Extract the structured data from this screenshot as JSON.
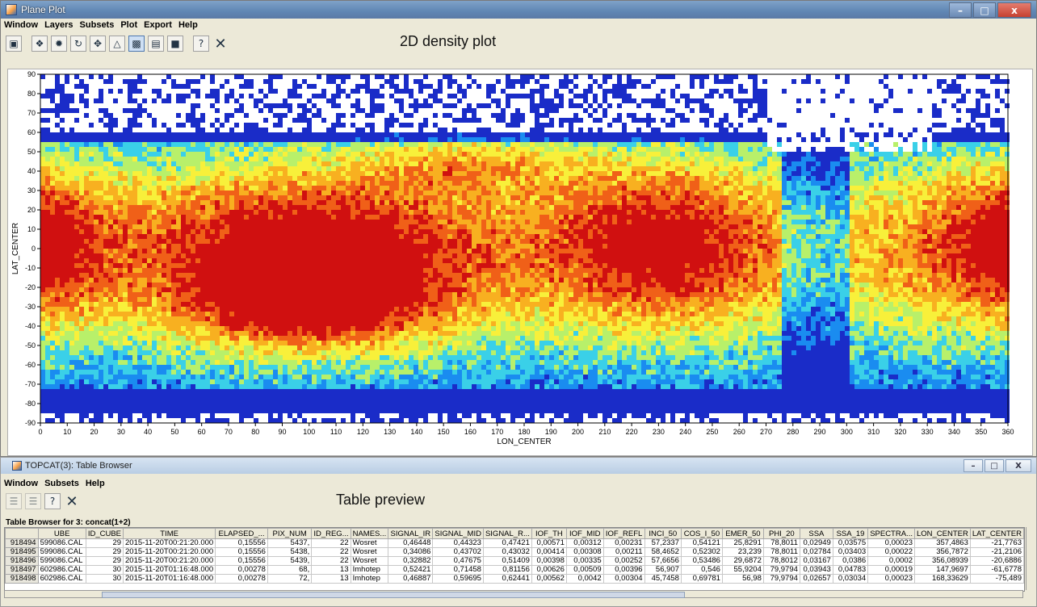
{
  "plot_window": {
    "title": "Plane Plot",
    "menus": [
      "Window",
      "Layers",
      "Subsets",
      "Plot",
      "Export",
      "Help"
    ],
    "annotation": "2D density plot",
    "toolbar_icons": [
      "new-window-icon",
      "subset-icon",
      "clear-icon",
      "rescale-icon",
      "navigate-icon",
      "grid-icon",
      "density-icon",
      "legend-icon",
      "draw-icon",
      "help-icon",
      "close-icon"
    ]
  },
  "chart_data": {
    "type": "heatmap",
    "xlabel": "LON_CENTER",
    "ylabel": "LAT_CENTER",
    "xlim": [
      0,
      360
    ],
    "ylim": [
      -90,
      90
    ],
    "x_ticks": [
      "0",
      "10",
      "20",
      "30",
      "40",
      "50",
      "60",
      "70",
      "80",
      "90",
      "100",
      "110",
      "120",
      "130",
      "140",
      "150",
      "160",
      "170",
      "180",
      "190",
      "200",
      "210",
      "220",
      "230",
      "240",
      "250",
      "260",
      "270",
      "280",
      "290",
      "300",
      "310",
      "320",
      "330",
      "340",
      "350",
      "360"
    ],
    "y_ticks": [
      "90",
      "80",
      "70",
      "60",
      "50",
      "40",
      "30",
      "20",
      "10",
      "0",
      "-10",
      "-20",
      "-30",
      "-40",
      "-50",
      "-60",
      "-70",
      "-80",
      "-90"
    ],
    "colormap": [
      "#1a2cc8",
      "#1a8cf0",
      "#3ad0e8",
      "#b8f06a",
      "#f8f03a",
      "#f8b020",
      "#f06018",
      "#d01010"
    ]
  },
  "table_window": {
    "title": "TOPCAT(3): Table Browser",
    "menus": [
      "Window",
      "Subsets",
      "Help"
    ],
    "annotation": "Table preview",
    "caption": "Table Browser for 3: concat(1+2)",
    "columns": [
      "UBE",
      "ID_CUBE",
      "TIME",
      "ELAPSED_...",
      "PIX_NUM",
      "ID_REG...",
      "NAMES...",
      "SIGNAL_IR",
      "SIGNAL_MID",
      "SIGNAL_R...",
      "IOF_TH",
      "IOF_MID",
      "IOF_REFL",
      "INCI_50",
      "COS_I_50",
      "EMER_50",
      "PHI_20",
      "SSA",
      "SSA_19",
      "SPECTRA...",
      "LON_CENTER",
      "LAT_CENTER"
    ],
    "rows": [
      [
        "918494",
        "599086.CAL",
        "29",
        "2015-11-20T00:21:20.000",
        "0,15556",
        "5437,",
        "22",
        "Wosret",
        "0,46448",
        "0,44323",
        "0,47421",
        "0,00571",
        "0,00312",
        "0,00231",
        "57,2337",
        "0,54121",
        "25,8291",
        "78,8011",
        "0,02949",
        "0,03575",
        "0,00023",
        "357,4863",
        "-21,7763"
      ],
      [
        "918495",
        "599086.CAL",
        "29",
        "2015-11-20T00:21:20.000",
        "0,15556",
        "5438,",
        "22",
        "Wosret",
        "0,34086",
        "0,43702",
        "0,43032",
        "0,00414",
        "0,00308",
        "0,00211",
        "58,4652",
        "0,52302",
        "23,239",
        "78,8011",
        "0,02784",
        "0,03403",
        "0,00022",
        "356,7872",
        "-21,2106"
      ],
      [
        "918496",
        "599086.CAL",
        "29",
        "2015-11-20T00:21:20.000",
        "0,15556",
        "5439,",
        "22",
        "Wosret",
        "0,32882",
        "0,47675",
        "0,51409",
        "0,00398",
        "0,00335",
        "0,00252",
        "57,6656",
        "0,53486",
        "29,6872",
        "78,8012",
        "0,03167",
        "0,0386",
        "0,0002",
        "356,08939",
        "-20,6886"
      ],
      [
        "918497",
        "602986.CAL",
        "30",
        "2015-11-20T01:16:48.000",
        "0,00278",
        "68,",
        "13",
        "Imhotep",
        "0,52421",
        "0,71458",
        "0,81156",
        "0,00626",
        "0,00509",
        "0,00396",
        "56,907",
        "0,546",
        "55,9204",
        "79,9794",
        "0,03943",
        "0,04783",
        "0,00019",
        "147,9697",
        "-61,6778"
      ],
      [
        "918498",
        "602986.CAL",
        "30",
        "2015-11-20T01:16:48.000",
        "0,00278",
        "72,",
        "13",
        "Imhotep",
        "0,46887",
        "0,59695",
        "0,62441",
        "0,00562",
        "0,0042",
        "0,00304",
        "45,7458",
        "0,69781",
        "56,98",
        "79,9794",
        "0,02657",
        "0,03034",
        "0,00023",
        "168,33629",
        "-75,489"
      ]
    ]
  }
}
